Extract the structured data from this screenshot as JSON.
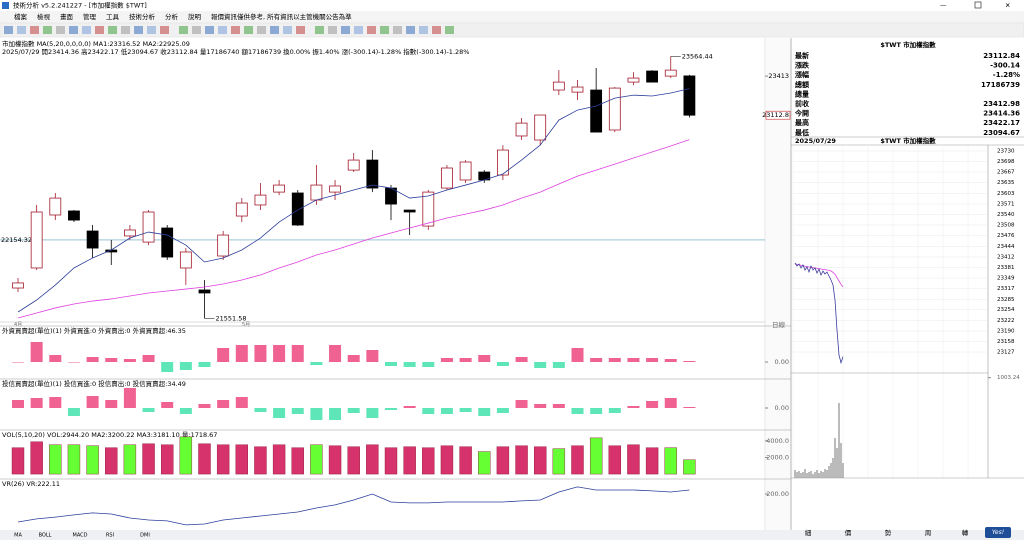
{
  "window": {
    "title": "技術分析 v5.2.241227 - [市加權指數 $TWT]"
  },
  "menu": [
    "檔案",
    "檢視",
    "畫面",
    "管理",
    "工具",
    "技術分析",
    "分析",
    "說明",
    "報價資訊僅供參考, 所有資訊以主管機關公告為準"
  ],
  "main": {
    "info": [
      "市加權指數 MA(5,20,0,0,0,0) MA1:23316.52 MA2:22925.09",
      "2025/07/29 開23414.36 高23422.17 低23094.67 收23112.84 量17186740 額17186739 換0.00% 振1.40% 漲(-300.14)-1.28% 指數(-300.14)-1.28%"
    ],
    "ylim": [
      21524,
      23675
    ],
    "candles": {
      "open": [
        21785,
        21939,
        22346,
        22377,
        22223,
        22077,
        22185,
        22138,
        22246,
        21939,
        21770,
        22031,
        22338,
        22423,
        22522,
        22515,
        22461,
        22522,
        22691,
        22768,
        22553,
        22384,
        22261,
        22553,
        22615,
        22676,
        22653,
        22953,
        22922,
        23306,
        23290,
        23306,
        22999,
        23367,
        23452,
        23413,
        23414.36
      ],
      "high": [
        21862,
        22423,
        22515,
        22384,
        22269,
        22154,
        22269,
        22384,
        22269,
        22092,
        21847,
        22223,
        22476,
        22592,
        22615,
        22538,
        22730,
        22615,
        22822,
        22845,
        22576,
        22384,
        22538,
        22730,
        22768,
        22691,
        22883,
        23091,
        23114,
        23459,
        23383,
        23475,
        23329,
        23444,
        23459,
        23564.44,
        23422.17
      ],
      "low": [
        21754,
        21923,
        22307,
        22292,
        22016,
        21962,
        22154,
        22115,
        22000,
        21808,
        21551.58,
        22000,
        22292,
        22384,
        22499,
        22261,
        22423,
        22461,
        22676,
        22522,
        22307,
        22192,
        22231,
        22538,
        22592,
        22592,
        22615,
        22922,
        22883,
        23267,
        23229,
        22983,
        22983,
        23344,
        23367,
        23398,
        23094.67
      ],
      "close": [
        21824,
        22369,
        22476,
        22307,
        22092,
        22062,
        22231,
        22369,
        22023,
        22062,
        21747,
        22192,
        22438,
        22499,
        22576,
        22269,
        22576,
        22569,
        22768,
        22553,
        22430,
        22369,
        22522,
        22707,
        22753,
        22615,
        22845,
        23052,
        23114,
        23367,
        23329,
        22983,
        23321,
        23398,
        23367,
        23459,
        23112.84
      ]
    },
    "ma1": [
      21601,
      21693,
      21808,
      21939,
      22016,
      22077,
      22169,
      22215,
      22192,
      22115,
      21985,
      22016,
      22077,
      22169,
      22292,
      22384,
      22461,
      22499,
      22538,
      22576,
      22553,
      22476,
      22492,
      22538,
      22576,
      22615,
      22661,
      22768,
      22883,
      23075,
      23152,
      23183,
      23244,
      23267,
      23260,
      23283,
      23316.52
    ],
    "ma2": [
      21555,
      21593,
      21632,
      21662,
      21685,
      21701,
      21724,
      21747,
      21762,
      21777,
      21793,
      21816,
      21847,
      21885,
      21939,
      21985,
      22039,
      22077,
      22123,
      22169,
      22208,
      22246,
      22284,
      22323,
      22353,
      22384,
      22423,
      22476,
      22522,
      22584,
      22645,
      22691,
      22737,
      22784,
      22830,
      22876,
      22925.09
    ],
    "axis_labels": [
      23413,
      {
        "value": 23112.84,
        "label": "23112.8"
      }
    ],
    "ref_line": 22154.32,
    "high_label": "23564.44",
    "low_label": "21551.58",
    "x_labels": [
      "4月",
      "5月"
    ],
    "period": "日線",
    "up_color": "#a31b2b",
    "down_color": "#000000",
    "ma_colors": [
      "#2c3e9c",
      "#e040e0"
    ]
  },
  "foreign": {
    "label": "外資買賣超(單位)(1) 外資買進:0 外資賣出:0 外資買賣超:46.35",
    "ylim": [
      -14,
      35
    ],
    "yticks": [
      {
        "value": 0,
        "label": "0.00"
      }
    ],
    "values": [
      0,
      20,
      7,
      0,
      5,
      4,
      3,
      7,
      -10,
      -8,
      -5,
      14,
      17,
      17,
      17,
      17,
      -3,
      17,
      7,
      12,
      -4,
      -5,
      -5,
      4,
      4,
      7,
      -4,
      5,
      -6,
      -6,
      14,
      4,
      4,
      4,
      4,
      3,
      1
    ]
  },
  "invest": {
    "label": "投信買賣超(單位)(1) 投信買進:0 投信賣出:0 投信買賣超:34.49",
    "ylim": [
      -22,
      28
    ],
    "yticks": [
      {
        "value": 0,
        "label": "0.00"
      }
    ],
    "values": [
      8,
      10,
      11,
      -8,
      12,
      8,
      20,
      -4,
      6,
      -6,
      4,
      8,
      11,
      -4,
      -10,
      -6,
      -12,
      -12,
      -5,
      -10,
      -2,
      2,
      -6,
      -6,
      -4,
      -8,
      -5,
      8,
      4,
      4,
      -6,
      -6,
      -5,
      2,
      7,
      10,
      1
    ]
  },
  "vol": {
    "label": "VOL(5,10,20) VOL:2944.20 MA2:3200.22 MA3:3181.10 量:1718.67",
    "ylim": [
      -470,
      5176
    ],
    "yticks": [
      {
        "value": 2000,
        "label": "2000.0"
      },
      {
        "value": 4000,
        "label": "4000.0"
      }
    ],
    "values": [
      3175,
      3881,
      3528,
      3528,
      3410,
      3175,
      3528,
      3646,
      3528,
      4469,
      3646,
      3528,
      3528,
      3293,
      3528,
      3175,
      3528,
      3410,
      3293,
      3528,
      3175,
      3293,
      3175,
      3410,
      3293,
      2705,
      3293,
      3410,
      3293,
      3058,
      3410,
      4351,
      3410,
      3528,
      3175,
      3175,
      1718.67
    ],
    "bar_colors": [
      "#d6336c",
      "#d6336c",
      "#66ff33",
      "#66ff33",
      "#66ff33",
      "#d6336c",
      "#66ff33",
      "#d6336c",
      "#d6336c",
      "#66ff33",
      "#d6336c",
      "#d6336c",
      "#d6336c",
      "#d6336c",
      "#d6336c",
      "#d6336c",
      "#66ff33",
      "#d6336c",
      "#d6336c",
      "#d6336c",
      "#d6336c",
      "#d6336c",
      "#d6336c",
      "#d6336c",
      "#d6336c",
      "#66ff33",
      "#d6336c",
      "#d6336c",
      "#d6336c",
      "#66ff33",
      "#d6336c",
      "#66ff33",
      "#d6336c",
      "#d6336c",
      "#d6336c",
      "#66ff33",
      "#66ff33"
    ]
  },
  "vr": {
    "label": "VR(26) VR:222.11",
    "ylim": [
      2,
      277
    ],
    "yticks": [
      {
        "value": 200,
        "label": "200.00"
      }
    ],
    "values": [
      46,
      63,
      73,
      85,
      96,
      90,
      68,
      57,
      52,
      30,
      35,
      57,
      68,
      79,
      90,
      101,
      123,
      140,
      167,
      200,
      156,
      151,
      151,
      156,
      156,
      156,
      156,
      162,
      167,
      211,
      239,
      222,
      222,
      222,
      217,
      211,
      222.11
    ]
  },
  "bottom_tabs": [
    "MA",
    "BOLL",
    "MACD",
    "RSI",
    "DMI"
  ],
  "quote": {
    "header": "$TWT 市加權指數",
    "rows": [
      [
        "最新",
        "23112.84"
      ],
      [
        "漲跌",
        "-300.14"
      ],
      [
        "漲幅",
        "-1.28%"
      ],
      [
        "總額",
        "17186739"
      ],
      [
        "總量",
        null
      ],
      [
        "前收",
        "23412.98"
      ],
      [
        "今開",
        "23414.36"
      ],
      [
        "最高",
        "23422.17"
      ],
      [
        "最低",
        "23094.67"
      ]
    ],
    "row_colors": [
      "#0a8a0a",
      "#0a8a0a",
      "#0a8a0a",
      "#000000",
      "#000000",
      "#000000",
      "#c00000",
      "#c00000",
      "#0a8a0a"
    ]
  },
  "intraday": {
    "date": "2025/07/29",
    "header": "$TWT 市加權指數",
    "ylim": [
      23073,
      23748
    ],
    "yticks": [
      23730,
      23698,
      23667,
      23635,
      23603,
      23571,
      23540,
      23508,
      23476,
      23444,
      23412,
      23381,
      23349,
      23317,
      23285,
      23254,
      23222,
      23190,
      23158,
      23127
    ],
    "price": [
      23394,
      23385,
      23391,
      23379,
      23388,
      23373,
      23382,
      23367,
      23385,
      23373,
      23379,
      23364,
      23376,
      23358,
      23370,
      23361,
      23367,
      23355,
      23343,
      23328,
      23283,
      23193,
      23118,
      23095,
      23112.84
    ],
    "avg": [
      23392,
      23390,
      23389,
      23387,
      23386,
      23384,
      23383,
      23382,
      23381,
      23380,
      23379,
      23378,
      23377,
      23376,
      23375,
      23374,
      23373,
      23372,
      23370,
      23366,
      23360,
      23350,
      23340,
      23330,
      23322
    ],
    "vol_ylim": [
      0,
      1040
    ],
    "vol_yticks": [
      {
        "value": 1003.24,
        "label": "1003.24"
      }
    ],
    "volume": [
      80,
      60,
      70,
      50,
      60,
      90,
      50,
      60,
      70,
      40,
      60,
      80,
      50,
      70,
      60,
      90,
      80,
      120,
      150,
      200,
      400,
      300,
      750,
      350,
      150
    ],
    "tabs": [
      "細",
      "價",
      "勢",
      "周",
      "轉"
    ]
  }
}
